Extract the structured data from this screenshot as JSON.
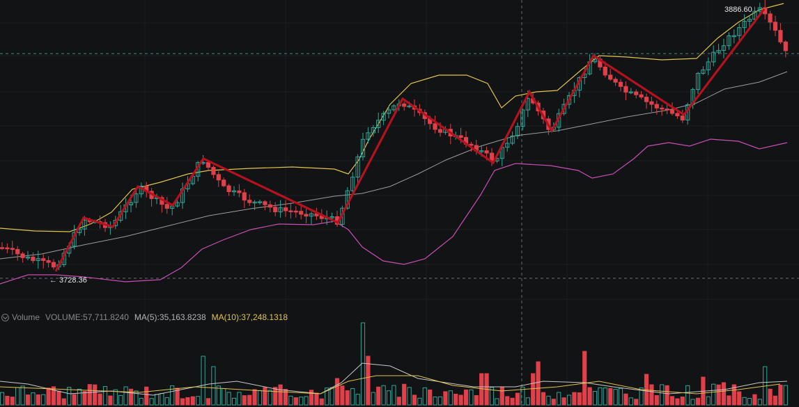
{
  "volume_legend": {
    "title": "Volume",
    "volume_text": "VOLUME:57,711.8240",
    "ma5_text": "MA(5):35,163.8238",
    "ma10_text": "MA(10):37,248.1318"
  },
  "price_markers": {
    "high_label": "3886.60",
    "low_label": "← 3728.36"
  },
  "colors": {
    "background": "#121315",
    "up": "#2fa89a",
    "down": "#e0404a",
    "bollinger_upper": "#e3c54a",
    "bollinger_mid": "#c9c9c9",
    "bollinger_lower": "#c94db6",
    "zigzag": "#b3121e",
    "volume_ma5": "#c9c9c9",
    "volume_ma10": "#e3c54a"
  },
  "chart_data": {
    "type": "candlestick",
    "price_high": 3886.6,
    "price_low": 3728.36,
    "volume_indicators": {
      "volume": 57711.824,
      "ma5": 35163.8238,
      "ma10": 37248.1318
    }
  }
}
